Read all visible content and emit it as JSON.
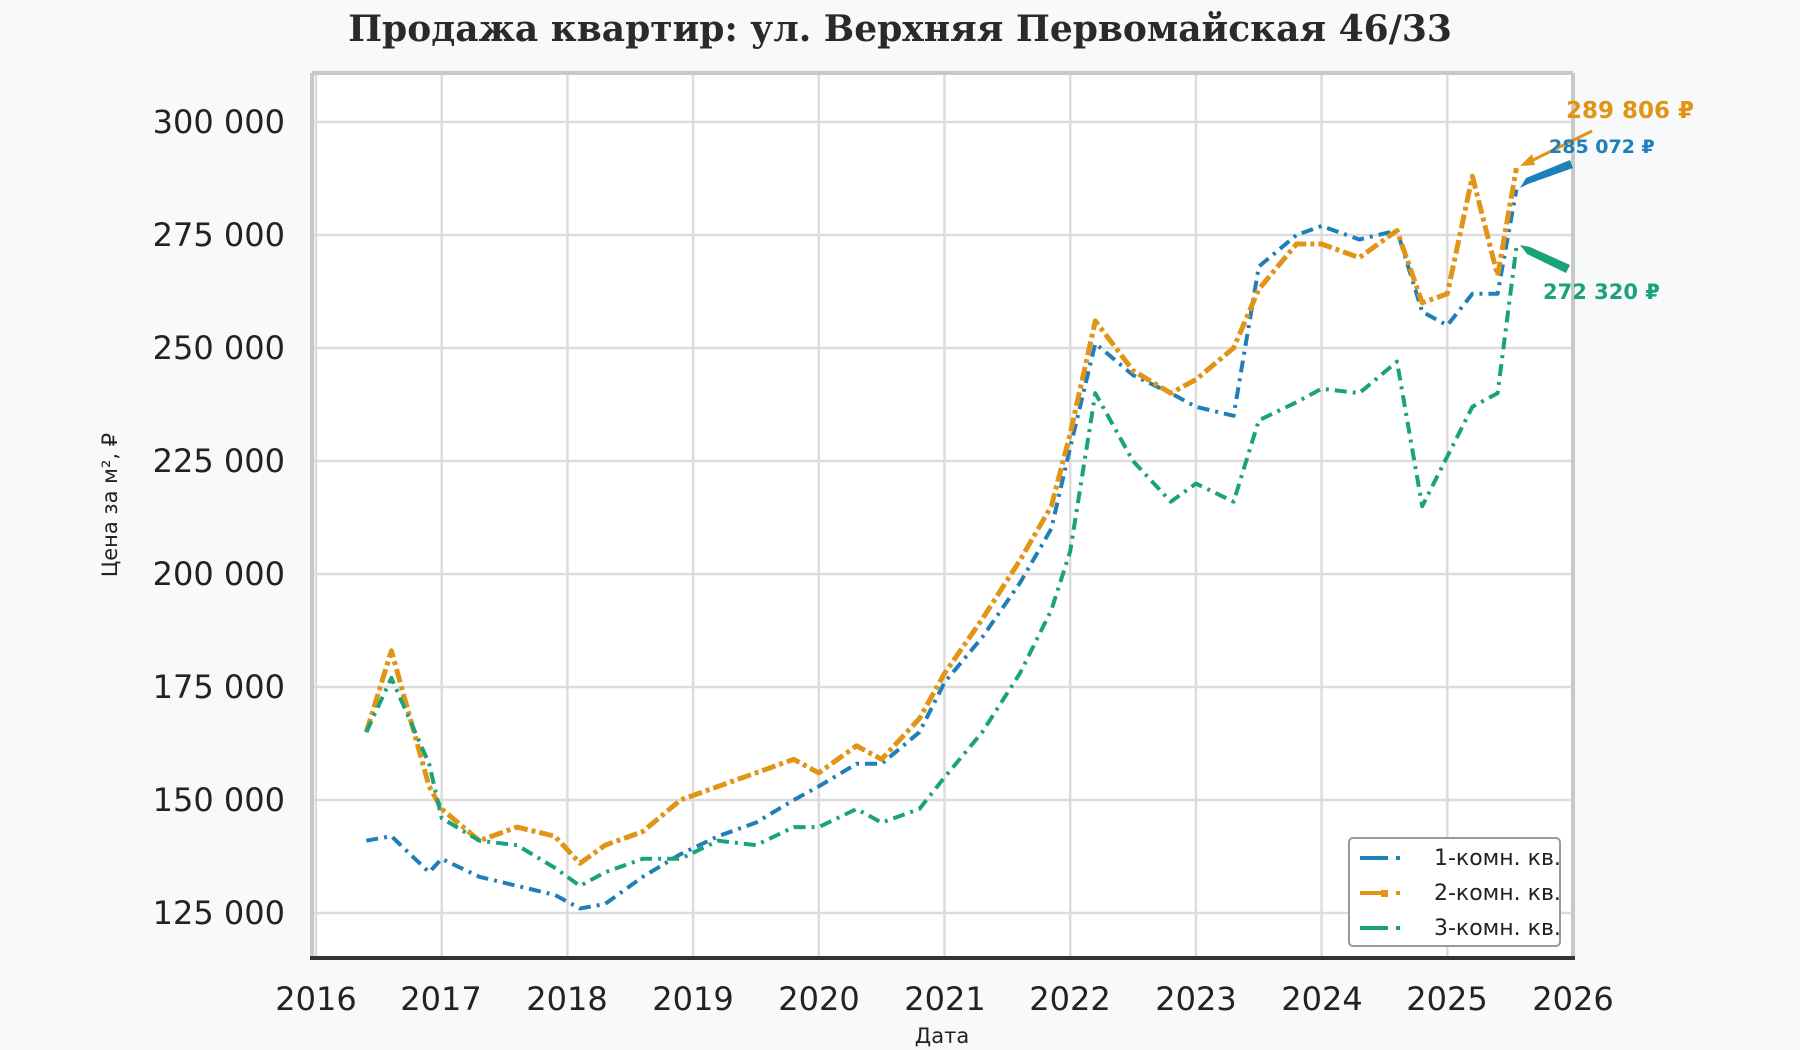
{
  "title": "Продажа квартир: ул. Верхняя Первомайская 46/33",
  "axes": {
    "ylabel": "Цена за м², ₽",
    "xlabel": "Дата",
    "yticks": [
      "300 000",
      "275 000",
      "250 000",
      "225 000",
      "200 000",
      "175 000",
      "150 000",
      "125 000"
    ],
    "xticks": [
      "2016",
      "2017",
      "2018",
      "2019",
      "2020",
      "2021",
      "2022",
      "2023",
      "2024",
      "2025",
      "2026"
    ]
  },
  "legend": {
    "items": [
      {
        "label": "1-комн. кв.",
        "color": "#1f7fb8"
      },
      {
        "label": "2-комн. кв.",
        "color": "#e29415"
      },
      {
        "label": "3-комн. кв.",
        "color": "#1aa37a"
      }
    ]
  },
  "annotations": [
    {
      "text": "289 806 ₽",
      "color": "#e29415"
    },
    {
      "text": "285 072 ₽",
      "color": "#1f7fb8"
    },
    {
      "text": "272 320 ₽",
      "color": "#1aa37a"
    }
  ],
  "chart_data": {
    "type": "line",
    "title": "Продажа квартир: ул. Верхняя Первомайская 46/33",
    "xlabel": "Дата",
    "ylabel": "Цена за м², ₽",
    "xlim": [
      2016,
      2026
    ],
    "ylim": [
      115000,
      311000
    ],
    "grid": true,
    "legend_position": "lower right",
    "x": [
      2016.4,
      2016.6,
      2016.9,
      2017.0,
      2017.3,
      2017.6,
      2017.9,
      2018.1,
      2018.3,
      2018.6,
      2018.9,
      2019.2,
      2019.5,
      2019.8,
      2020.0,
      2020.3,
      2020.5,
      2020.8,
      2021.0,
      2021.3,
      2021.6,
      2021.85,
      2022.0,
      2022.2,
      2022.5,
      2022.8,
      2023.0,
      2023.3,
      2023.5,
      2023.8,
      2024.0,
      2024.3,
      2024.6,
      2024.8,
      2025.0,
      2025.2,
      2025.4,
      2025.55
    ],
    "series": [
      {
        "name": "1-комн. кв.",
        "color": "#1f7fb8",
        "values": [
          141000,
          142000,
          134000,
          137000,
          133000,
          131000,
          129000,
          126000,
          127000,
          133000,
          138000,
          142000,
          145000,
          150000,
          153000,
          158000,
          158000,
          165000,
          176000,
          186000,
          198000,
          210000,
          228000,
          251000,
          244000,
          240000,
          237000,
          235000,
          268000,
          275000,
          277000,
          274000,
          276000,
          258000,
          255000,
          262000,
          262000,
          285072
        ]
      },
      {
        "name": "2-комн. кв.",
        "color": "#e29415",
        "values": [
          165000,
          183000,
          153000,
          148000,
          141000,
          144000,
          142000,
          136000,
          140000,
          143000,
          150000,
          153000,
          156000,
          159000,
          156000,
          162000,
          159000,
          168000,
          178000,
          190000,
          203000,
          215000,
          231000,
          256000,
          245000,
          240000,
          243000,
          250000,
          263000,
          273000,
          273000,
          270000,
          276000,
          260000,
          262000,
          288000,
          266000,
          289806
        ]
      },
      {
        "name": "3-комн. кв.",
        "color": "#1aa37a",
        "values": [
          165000,
          177000,
          158000,
          146000,
          141000,
          140000,
          135000,
          131000,
          134000,
          137000,
          137000,
          141000,
          140000,
          144000,
          144000,
          148000,
          145000,
          148000,
          155000,
          165000,
          178000,
          192000,
          205000,
          240000,
          225000,
          216000,
          220000,
          216000,
          234000,
          238000,
          241000,
          240000,
          247000,
          215000,
          226000,
          237000,
          240000,
          272320
        ]
      }
    ],
    "annotations": [
      {
        "series": "2-комн. кв.",
        "value": 289806,
        "label": "289 806 ₽"
      },
      {
        "series": "1-комн. кв.",
        "value": 285072,
        "label": "285 072 ₽"
      },
      {
        "series": "3-комн. кв.",
        "value": 272320,
        "label": "272 320 ₽"
      }
    ]
  }
}
